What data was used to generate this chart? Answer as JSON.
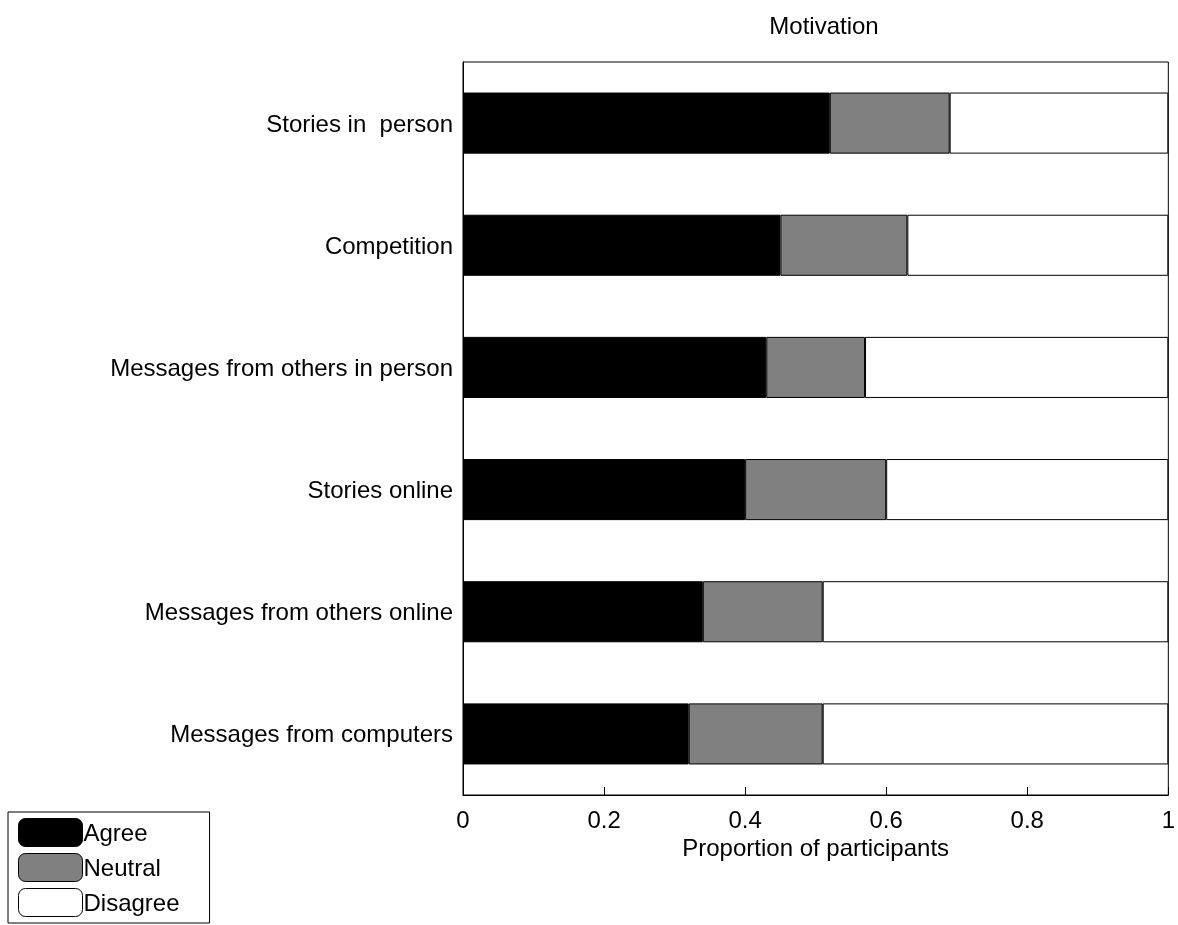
{
  "chart_data": {
    "type": "bar",
    "title": "Motivation",
    "xlabel": "Proportion of participants",
    "orientation": "horizontal",
    "stacked": true,
    "categories": [
      "Stories in  person",
      "Competition",
      "Messages from others in person",
      "Stories online",
      "Messages from others online",
      "Messages from computers"
    ],
    "series": [
      {
        "name": "Agree",
        "color": "#000000",
        "values": [
          0.52,
          0.45,
          0.43,
          0.4,
          0.34,
          0.32
        ]
      },
      {
        "name": "Neutral",
        "color": "#808080",
        "values": [
          0.17,
          0.18,
          0.14,
          0.2,
          0.17,
          0.19
        ]
      },
      {
        "name": "Disagree",
        "color": "#ffffff",
        "values": [
          0.31,
          0.37,
          0.43,
          0.4,
          0.49,
          0.49
        ]
      }
    ],
    "xlim": [
      0,
      1
    ],
    "xticks": [
      0,
      0.2,
      0.4,
      0.6,
      0.8,
      1
    ],
    "grid": false,
    "legend": "bottom left"
  }
}
